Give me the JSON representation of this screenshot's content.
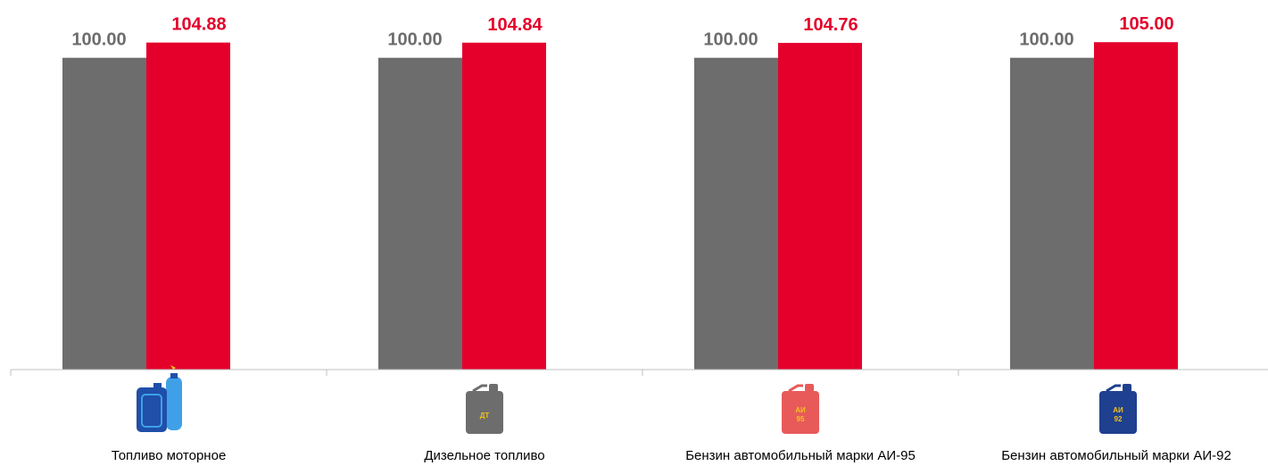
{
  "chart_data": {
    "type": "bar",
    "categories": [
      "Топливо моторное",
      "Дизельное топливо",
      "Бензин автомобильный марки АИ-95",
      "Бензин автомобильный марки АИ-92"
    ],
    "series": [
      {
        "values": [
          100.0,
          100.0,
          100.0,
          100.0
        ],
        "labels": [
          "100.00",
          "100.00",
          "100.00",
          "100.00"
        ],
        "color": "#6d6d6d"
      },
      {
        "values": [
          104.88,
          104.84,
          104.76,
          105.0
        ],
        "labels": [
          "104.88",
          "104.84",
          "104.76",
          "105.00"
        ],
        "color": "#e4002b"
      }
    ],
    "title": "",
    "xlabel": "",
    "ylabel": "",
    "ylim": [
      0,
      106.5
    ],
    "grid": false,
    "legend": "none"
  },
  "icons": [
    {
      "name": "gas-cylinder-canister-icon",
      "colors": [
        "#1f4fa8",
        "#3fa0e8"
      ]
    },
    {
      "name": "diesel-canister-icon",
      "colors": [
        "#6d6d6d"
      ],
      "text": "ДТ"
    },
    {
      "name": "ai95-canister-icon",
      "colors": [
        "#e85a5a"
      ],
      "text_top": "АИ",
      "text_bottom": "95"
    },
    {
      "name": "ai92-canister-icon",
      "colors": [
        "#1f3f8f"
      ],
      "text_top": "АИ",
      "text_bottom": "92"
    }
  ]
}
